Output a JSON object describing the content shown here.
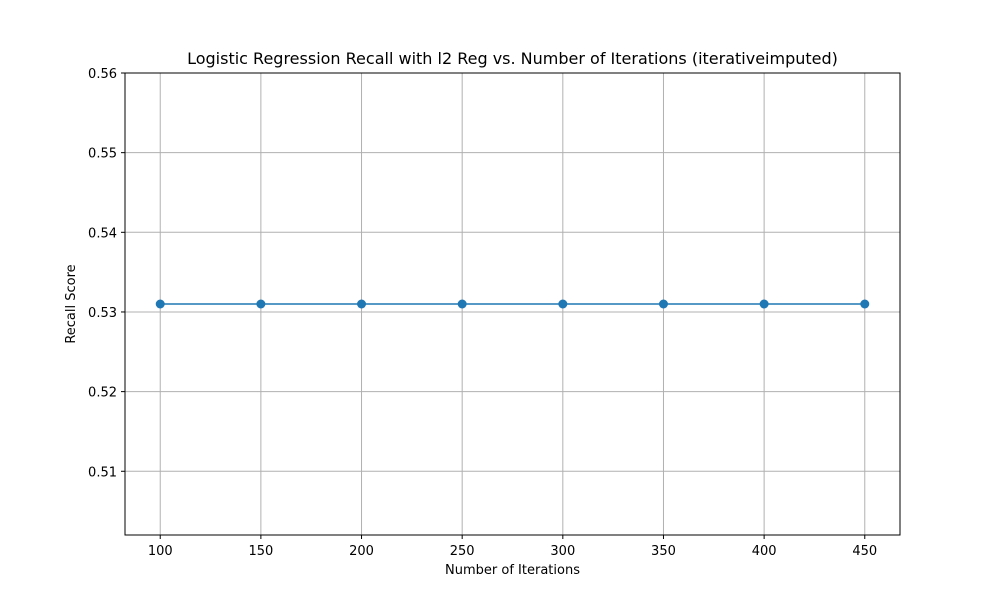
{
  "chart_data": {
    "type": "line",
    "title": "Logistic Regression Recall with l2 Reg vs. Number of Iterations (iterativeimputed)",
    "xlabel": "Number of Iterations",
    "ylabel": "Recall Score",
    "x": [
      100,
      150,
      200,
      250,
      300,
      350,
      400,
      450
    ],
    "series": [
      {
        "values": [
          0.531,
          0.531,
          0.531,
          0.531,
          0.531,
          0.531,
          0.531,
          0.531
        ]
      }
    ],
    "xlim": [
      82.5,
      467.5
    ],
    "ylim": [
      0.502,
      0.56
    ],
    "xticks": [
      "100",
      "150",
      "200",
      "250",
      "300",
      "350",
      "400",
      "450"
    ],
    "yticks": [
      "0.51",
      "0.52",
      "0.53",
      "0.54",
      "0.55",
      "0.56"
    ],
    "grid": true,
    "line_color": "#1f77b4",
    "marker": "circle"
  }
}
